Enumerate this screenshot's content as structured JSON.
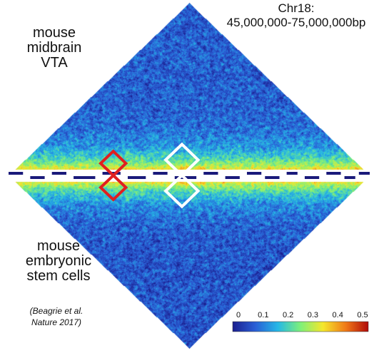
{
  "labels": {
    "top_dataset": [
      "mouse",
      "midbrain",
      "VTA"
    ],
    "region": [
      "Chr18:",
      "45,000,000-75,000,000bp"
    ],
    "bottom_dataset": [
      "mouse",
      "embryonic",
      "stem cells"
    ],
    "citation": [
      "(Beagrie et al.",
      "Nature 2017)"
    ]
  },
  "chart_data": {
    "type": "heatmap",
    "layout": "two rotated triangular contact maps mirrored across a shared genomic axis",
    "region_label": "Chr18: 45,000,000-75,000,000bp",
    "maps": [
      {
        "name": "mouse midbrain VTA",
        "position": "top"
      },
      {
        "name": "mouse embryonic stem cells",
        "position": "bottom"
      }
    ],
    "colorbar": {
      "ticks": [
        "0",
        "0.1",
        "0.2",
        "0.3",
        "0.4",
        "0.5"
      ],
      "range": [
        0,
        0.5
      ],
      "colors": [
        "#1b1f8f",
        "#2a5fd6",
        "#25b8e6",
        "#7ef07a",
        "#f5e72b",
        "#f07a18",
        "#b00a0a"
      ]
    },
    "highlights": [
      {
        "map": "top",
        "color": "#e01f1f",
        "region_fraction": [
          0.22,
          0.36
        ]
      },
      {
        "map": "top",
        "color": "#ffffff",
        "region_fraction": [
          0.39,
          0.57
        ]
      },
      {
        "map": "bottom",
        "color": "#e01f1f",
        "region_fraction": [
          0.22,
          0.36
        ]
      },
      {
        "map": "bottom",
        "color": "#ffffff",
        "region_fraction": [
          0.39,
          0.57
        ]
      }
    ],
    "axis_track": {
      "color": "#1a1a7a",
      "segments": [
        [
          0.0,
          0.04,
          0
        ],
        [
          0.06,
          0.1,
          1
        ],
        [
          0.12,
          0.16,
          0
        ],
        [
          0.18,
          0.24,
          1
        ],
        [
          0.26,
          0.31,
          0
        ],
        [
          0.33,
          0.38,
          1
        ],
        [
          0.4,
          0.44,
          0
        ],
        [
          0.46,
          0.52,
          1
        ],
        [
          0.54,
          0.58,
          0
        ],
        [
          0.6,
          0.64,
          1
        ],
        [
          0.66,
          0.7,
          0
        ],
        [
          0.71,
          0.75,
          1
        ],
        [
          0.77,
          0.8,
          0
        ],
        [
          0.82,
          0.86,
          1
        ],
        [
          0.88,
          0.92,
          0
        ],
        [
          0.93,
          0.96,
          1
        ],
        [
          0.97,
          1.0,
          0
        ]
      ]
    }
  }
}
